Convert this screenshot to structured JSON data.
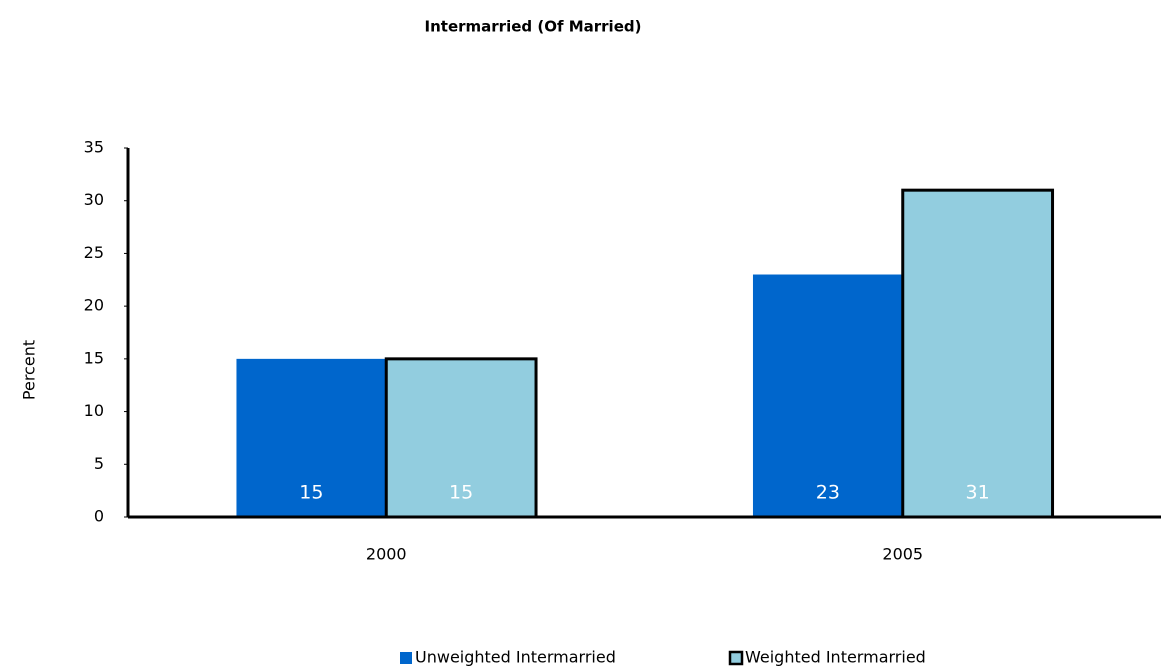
{
  "chart_data": {
    "type": "bar",
    "title": "Intermarried (Of Married)",
    "y_label": "Percent",
    "categories": [
      "2000",
      "2005"
    ],
    "series": [
      {
        "name": "Unweighted Intermarried",
        "color": "#0066cc",
        "values": [
          15,
          23
        ]
      },
      {
        "name": "Weighted Intermarried",
        "color": "#92cddf",
        "edgecolor": "#000000",
        "values": [
          15,
          31
        ]
      }
    ],
    "ylim": [
      0,
      35
    ],
    "yticks": [
      0,
      5,
      10,
      15,
      20,
      25,
      30,
      35
    ],
    "grid": false
  }
}
